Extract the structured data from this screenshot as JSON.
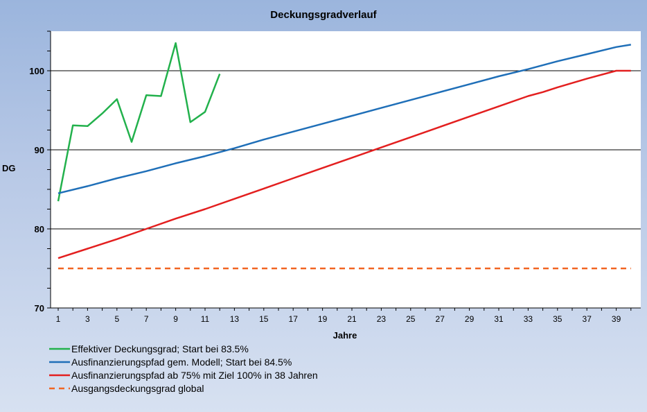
{
  "chart_data": {
    "type": "line",
    "title": "Deckungsgradverlauf",
    "xlabel": "Jahre",
    "ylabel": "DG",
    "xlim": [
      1,
      40
    ],
    "ylim": [
      70,
      105
    ],
    "yticks": [
      70,
      80,
      90,
      100
    ],
    "xticks": [
      1,
      3,
      5,
      7,
      9,
      11,
      13,
      15,
      17,
      19,
      21,
      23,
      25,
      27,
      29,
      31,
      33,
      35,
      37,
      39
    ],
    "grid": "horizontal",
    "legend": "bottom-left",
    "series": [
      {
        "name": "Effektiver Deckungsgrad; Start bei 83.5%",
        "color": "#22b14c",
        "dash": false,
        "x": [
          1,
          2,
          3,
          4,
          5,
          6,
          7,
          8,
          9,
          10,
          11,
          12
        ],
        "y": [
          83.5,
          93.1,
          93.0,
          94.6,
          96.4,
          91.0,
          96.9,
          96.8,
          103.5,
          93.5,
          94.8,
          99.6
        ]
      },
      {
        "name": "Ausfinanzierungspfad gem. Modell; Start bei 84.5%",
        "color": "#1f6fb8",
        "dash": false,
        "x": [
          1,
          3,
          5,
          7,
          9,
          11,
          13,
          15,
          17,
          19,
          21,
          23,
          25,
          27,
          29,
          31,
          33,
          35,
          37,
          39,
          40
        ],
        "y": [
          84.5,
          85.4,
          86.4,
          87.3,
          88.3,
          89.2,
          90.2,
          91.3,
          92.3,
          93.3,
          94.3,
          95.3,
          96.3,
          97.3,
          98.3,
          99.3,
          100.2,
          101.2,
          102.1,
          103.0,
          103.3
        ]
      },
      {
        "name": "Ausfinanzierungspfad ab 75% mit Ziel 100% in 38 Jahren",
        "color": "#e31f1f",
        "dash": false,
        "x": [
          1,
          3,
          5,
          7,
          9,
          11,
          13,
          15,
          17,
          19,
          21,
          23,
          25,
          27,
          29,
          31,
          33,
          34,
          35,
          37,
          39,
          40
        ],
        "y": [
          76.3,
          77.5,
          78.7,
          80.0,
          81.3,
          82.5,
          83.8,
          85.1,
          86.4,
          87.7,
          89.0,
          90.3,
          91.6,
          92.9,
          94.2,
          95.5,
          96.8,
          97.3,
          97.9,
          99.0,
          100.0,
          100.0
        ]
      },
      {
        "name": "Ausgangsdeckungsgrad global",
        "color": "#f26522",
        "dash": true,
        "x": [
          1,
          40
        ],
        "y": [
          75,
          75
        ]
      }
    ]
  }
}
